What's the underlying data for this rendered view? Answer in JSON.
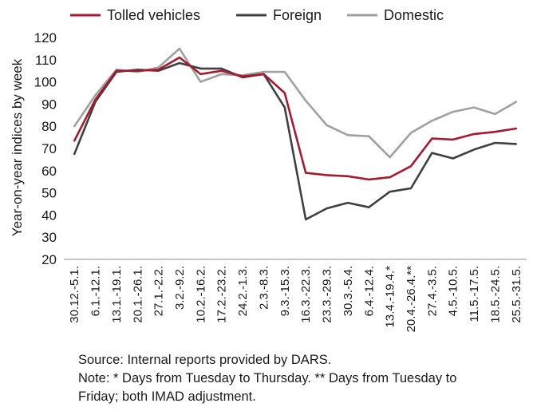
{
  "chart_data": {
    "type": "line",
    "ylabel": "Year-on-year indices by week",
    "ylim": [
      20,
      120
    ],
    "yticks": [
      "20",
      "30",
      "40",
      "50",
      "60",
      "70",
      "80",
      "90",
      "100",
      "110",
      "120"
    ],
    "categories": [
      "30.12.-5.1.",
      "6.1.-12.1.",
      "13.1.-19.1.",
      "20.1.-26.1.",
      "27.1.-2.2.",
      "3.2.-9.2.",
      "10.2.-16.2.",
      "17.2.-23.2.",
      "24.2.-1.3.",
      "2.3.-8.3.",
      "9.3.-15.3.",
      "16.3.-22.3.",
      "23.3.-29.3.",
      "30.3.-5.4.",
      "6.4.-12.4.",
      "13.4.-19.4.*",
      "20.4.-26.4.**",
      "27.4.-3.5.",
      "4.5.-10.5.",
      "11.5.-17.5.",
      "18.5.-24.5.",
      "25.5.-31.5."
    ],
    "series": [
      {
        "name": "Tolled vehicles",
        "color": "#a6192e",
        "values": [
          73.5,
          92,
          105,
          105,
          105.5,
          111,
          103.5,
          105,
          102.5,
          103.5,
          95,
          59,
          58,
          57.5,
          56,
          57,
          62,
          74.5,
          74,
          76.5,
          77.5,
          79
        ]
      },
      {
        "name": "Foreign",
        "color": "#404040",
        "values": [
          67.5,
          91,
          104.5,
          105.5,
          105,
          108.5,
          106,
          106,
          102,
          103.5,
          88.5,
          38,
          43,
          45.5,
          43.5,
          50.5,
          52,
          68,
          65.5,
          69.5,
          72.5,
          72
        ]
      },
      {
        "name": "Domestic",
        "color": "#a0a0a0",
        "values": [
          80,
          94,
          105.5,
          104.5,
          106.5,
          115,
          100,
          103.5,
          103,
          104.5,
          104.5,
          91.5,
          80.5,
          76,
          75.5,
          66,
          77,
          82.5,
          86.5,
          88.5,
          85.5,
          91
        ]
      }
    ],
    "legend": "top",
    "grid": false
  },
  "footnote": {
    "source": "Source: Internal reports provided by DARS.",
    "note_line1": "Note: * Days from Tuesday to Thursday. ** Days from Tuesday to",
    "note_line2": "Friday; both IMAD adjustment."
  }
}
